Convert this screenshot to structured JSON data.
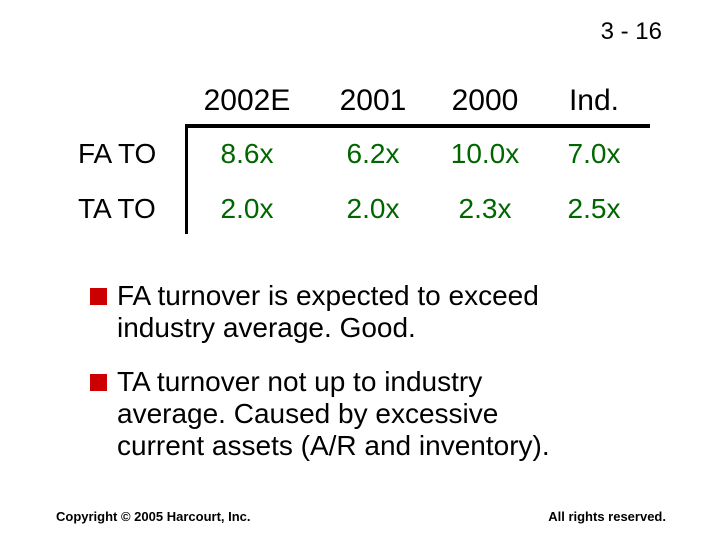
{
  "slide_number": "3 - 16",
  "table": {
    "headers": [
      "2002E",
      "2001",
      "2000",
      "Ind."
    ],
    "rows": [
      {
        "label": "FA TO",
        "values": [
          "8.6x",
          "6.2x",
          "10.0x",
          "7.0x"
        ]
      },
      {
        "label": "TA TO",
        "values": [
          "2.0x",
          "2.0x",
          "2.3x",
          "2.5x"
        ]
      }
    ]
  },
  "bullets": [
    {
      "lines": [
        "FA turnover is expected to exceed",
        "industry average.  Good."
      ]
    },
    {
      "lines": [
        "TA turnover not up to industry",
        "average.  Caused by excessive",
        "current assets (A/R and inventory)."
      ]
    }
  ],
  "footer": {
    "left": "Copyright © 2005 Harcourt, Inc.",
    "right": "All rights reserved."
  },
  "colors": {
    "value_text": "#006600",
    "bullet_marker": "#cc0000"
  }
}
